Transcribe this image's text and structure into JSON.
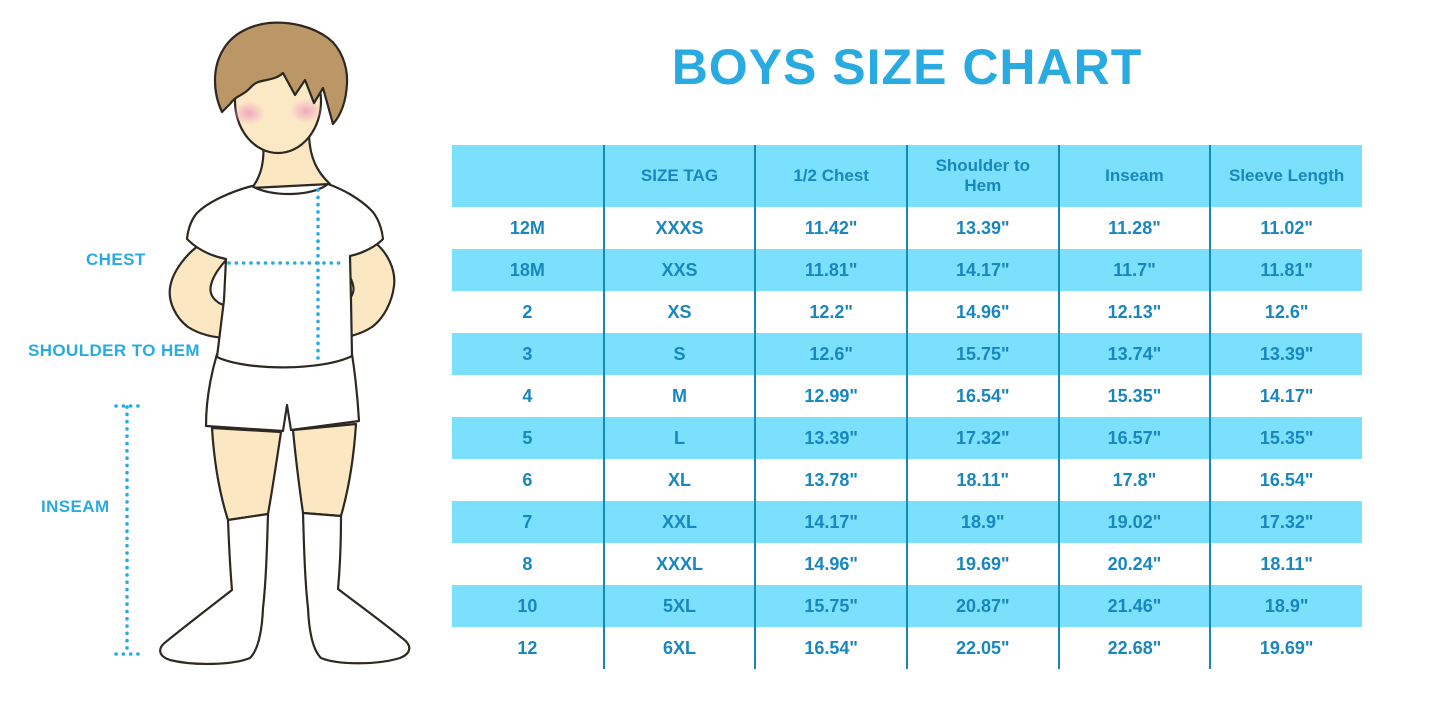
{
  "title": "BOYS SIZE CHART",
  "figure": {
    "description": "boy-with-measurement-lines",
    "labels": {
      "chest": "CHEST",
      "shoulder_to_hem": "SHOULDER TO HEM",
      "inseam": "INSEAM"
    }
  },
  "colors": {
    "accent_blue": "#29ABE2",
    "table_text_blue": "#1987BE",
    "cell_blue": "#7BE0FB",
    "row_white": "#FFFFFF",
    "skin": "#FBE8C3",
    "hair": "#BB9767",
    "cheek_pink": "#F0A3B8",
    "outline": "#2E2823"
  },
  "chart_data": {
    "type": "table",
    "title": "BOYS SIZE CHART",
    "columns": [
      "",
      "SIZE TAG",
      "1/2 Chest",
      "Shoulder to Hem",
      "Inseam",
      "Sleeve Length"
    ],
    "rows": [
      [
        "12M",
        "XXXS",
        "11.42\"",
        "13.39\"",
        "11.28\"",
        "11.02\""
      ],
      [
        "18M",
        "XXS",
        "11.81\"",
        "14.17\"",
        "11.7\"",
        "11.81\""
      ],
      [
        "2",
        "XS",
        "12.2\"",
        "14.96\"",
        "12.13\"",
        "12.6\""
      ],
      [
        "3",
        "S",
        "12.6\"",
        "15.75\"",
        "13.74\"",
        "13.39\""
      ],
      [
        "4",
        "M",
        "12.99\"",
        "16.54\"",
        "15.35\"",
        "14.17\""
      ],
      [
        "5",
        "L",
        "13.39\"",
        "17.32\"",
        "16.57\"",
        "15.35\""
      ],
      [
        "6",
        "XL",
        "13.78\"",
        "18.11\"",
        "17.8\"",
        "16.54\""
      ],
      [
        "7",
        "XXL",
        "14.17\"",
        "18.9\"",
        "19.02\"",
        "17.32\""
      ],
      [
        "8",
        "XXXL",
        "14.96\"",
        "19.69\"",
        "20.24\"",
        "18.11\""
      ],
      [
        "10",
        "5XL",
        "15.75\"",
        "20.87\"",
        "21.46\"",
        "18.9\""
      ],
      [
        "12",
        "6XL",
        "16.54\"",
        "22.05\"",
        "22.68\"",
        "19.69\""
      ]
    ],
    "layout": {
      "striping": "header and alternate rows light blue, others white",
      "column_separators": "dark blue vertical lines",
      "outer_border": "none"
    }
  }
}
